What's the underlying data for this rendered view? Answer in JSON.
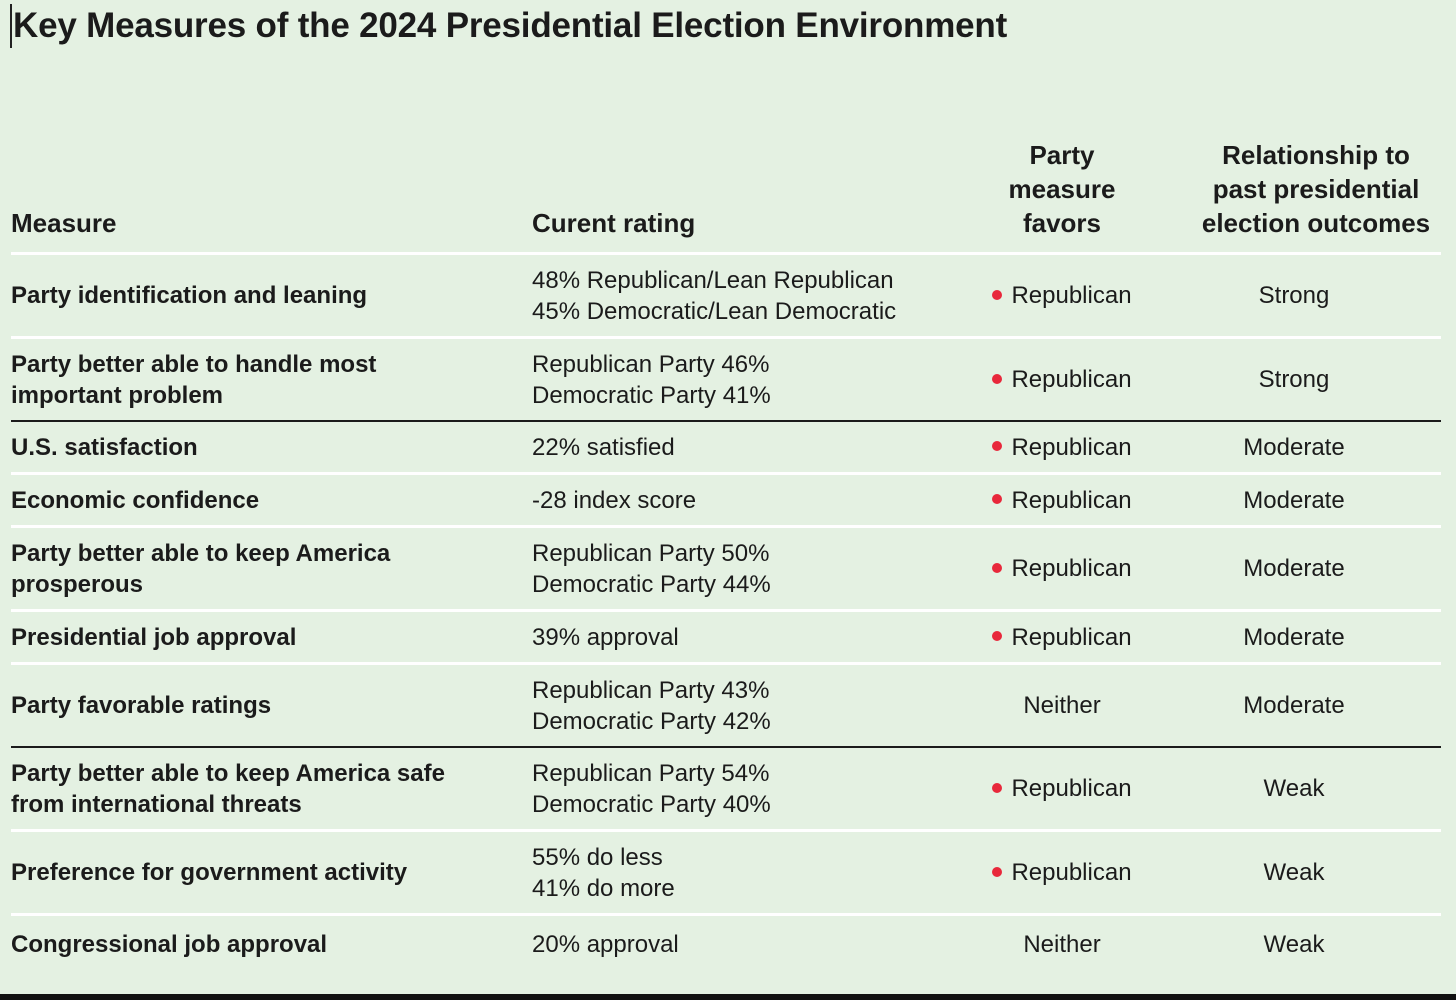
{
  "title": "Key Measures of the 2024 Presidential Election Environment",
  "columns": {
    "measure": "Measure",
    "rating": "Curent rating",
    "favors": [
      "Party",
      "measure",
      "favors"
    ],
    "relation": [
      "Relationship to",
      "past presidential",
      "election outcomes"
    ]
  },
  "colors": {
    "background": "#e4f1e2",
    "republican_dot": "#e8283b"
  },
  "rows": [
    {
      "measure": [
        "Party identification and leaning"
      ],
      "rating": [
        "48% Republican/Lean Republican",
        "45% Democratic/Lean Democratic"
      ],
      "favors": "Republican",
      "dot": true,
      "relation": "Strong"
    },
    {
      "measure": [
        "Party better able to handle most",
        "important problem"
      ],
      "rating": [
        "Republican Party 46%",
        "Democratic Party 41%"
      ],
      "favors": "Republican",
      "dot": true,
      "relation": "Strong"
    },
    {
      "measure": [
        "U.S. satisfaction"
      ],
      "rating": [
        "22% satisfied"
      ],
      "favors": "Republican",
      "dot": true,
      "relation": "Moderate"
    },
    {
      "measure": [
        "Economic confidence"
      ],
      "rating": [
        "-28 index score"
      ],
      "favors": "Republican",
      "dot": true,
      "relation": "Moderate"
    },
    {
      "measure": [
        "Party better able to keep America",
        "prosperous"
      ],
      "rating": [
        "Republican Party 50%",
        "Democratic Party 44%"
      ],
      "favors": "Republican",
      "dot": true,
      "relation": "Moderate"
    },
    {
      "measure": [
        "Presidential job approval"
      ],
      "rating": [
        "39% approval"
      ],
      "favors": "Republican",
      "dot": true,
      "relation": "Moderate"
    },
    {
      "measure": [
        "Party favorable ratings"
      ],
      "rating": [
        "Republican Party 43%",
        "Democratic Party 42%"
      ],
      "favors": "Neither",
      "dot": false,
      "relation": "Moderate"
    },
    {
      "measure": [
        "Party better able to keep America safe",
        "from international threats"
      ],
      "rating": [
        "Republican Party 54%",
        "Democratic Party 40%"
      ],
      "favors": "Republican",
      "dot": true,
      "relation": "Weak"
    },
    {
      "measure": [
        "Preference for government activity"
      ],
      "rating": [
        "55% do less",
        "41% do more"
      ],
      "favors": "Republican",
      "dot": true,
      "relation": "Weak"
    },
    {
      "measure": [
        "Congressional job approval"
      ],
      "rating": [
        "20% approval"
      ],
      "favors": "Neither",
      "dot": false,
      "relation": "Weak"
    }
  ]
}
